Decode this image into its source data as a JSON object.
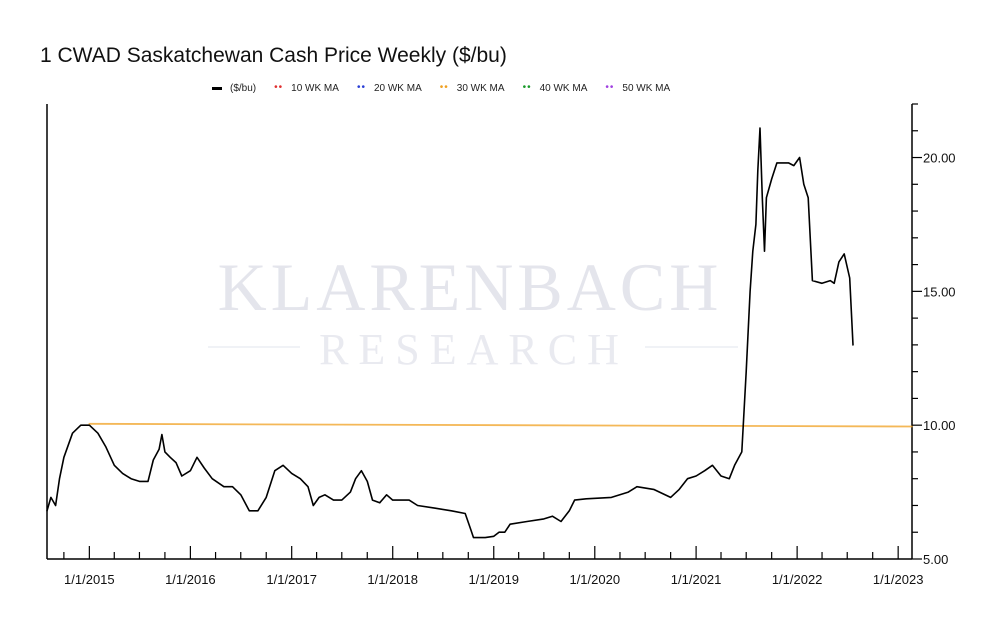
{
  "chart_data": {
    "type": "line",
    "title": "1 CWAD Saskatchewan Cash Price Weekly ($/bu)",
    "xlabel": "",
    "ylabel": "",
    "x_range": [
      "2014-08-01",
      "2023-02-20"
    ],
    "ylim": [
      5.0,
      22.0
    ],
    "y_axis_side": "right",
    "y_ticks": [
      5.0,
      10.0,
      15.0,
      20.0
    ],
    "y_tick_labels": [
      "5.00",
      "10.00",
      "15.00",
      "20.00"
    ],
    "x_ticks": [
      "2015-01-01",
      "2016-01-01",
      "2017-01-01",
      "2018-01-01",
      "2019-01-01",
      "2020-01-01",
      "2021-01-01",
      "2022-01-01",
      "2023-01-01"
    ],
    "x_tick_labels": [
      "1/1/2015",
      "1/1/2016",
      "1/1/2017",
      "1/1/2018",
      "1/1/2019",
      "1/1/2020",
      "1/1/2021",
      "1/1/2022",
      "1/1/2023"
    ],
    "grid": false,
    "legend_position": "top",
    "watermark": [
      "KLARENBACH",
      "RESEARCH"
    ],
    "legend": [
      {
        "name": "($/bu)",
        "color": "#000000",
        "style": "line"
      },
      {
        "name": "10 WK MA",
        "color": "#e03030",
        "style": "dots"
      },
      {
        "name": "20 WK MA",
        "color": "#2a3fd6",
        "style": "dots"
      },
      {
        "name": "30 WK MA",
        "color": "#f0a020",
        "style": "dots"
      },
      {
        "name": "40 WK MA",
        "color": "#1a9a2a",
        "style": "dots"
      },
      {
        "name": "50 WK MA",
        "color": "#a040e0",
        "style": "dots"
      }
    ],
    "series": [
      {
        "name": "($/bu)",
        "color": "#000000",
        "points": [
          [
            "2014-08-01",
            6.8
          ],
          [
            "2014-08-15",
            7.3
          ],
          [
            "2014-09-01",
            7.0
          ],
          [
            "2014-09-15",
            8.0
          ],
          [
            "2014-10-01",
            8.8
          ],
          [
            "2014-11-01",
            9.7
          ],
          [
            "2014-12-01",
            10.0
          ],
          [
            "2015-01-01",
            10.0
          ],
          [
            "2015-02-01",
            9.7
          ],
          [
            "2015-03-01",
            9.2
          ],
          [
            "2015-04-01",
            8.5
          ],
          [
            "2015-05-01",
            8.2
          ],
          [
            "2015-06-01",
            8.0
          ],
          [
            "2015-07-01",
            7.9
          ],
          [
            "2015-08-01",
            7.9
          ],
          [
            "2015-08-20",
            8.7
          ],
          [
            "2015-09-10",
            9.1
          ],
          [
            "2015-09-20",
            9.65
          ],
          [
            "2015-10-01",
            9.0
          ],
          [
            "2015-10-20",
            8.8
          ],
          [
            "2015-11-10",
            8.6
          ],
          [
            "2015-12-01",
            8.1
          ],
          [
            "2016-01-01",
            8.3
          ],
          [
            "2016-01-25",
            8.8
          ],
          [
            "2016-02-20",
            8.4
          ],
          [
            "2016-03-20",
            8.0
          ],
          [
            "2016-05-01",
            7.7
          ],
          [
            "2016-06-01",
            7.7
          ],
          [
            "2016-07-01",
            7.4
          ],
          [
            "2016-08-01",
            6.8
          ],
          [
            "2016-09-01",
            6.8
          ],
          [
            "2016-10-01",
            7.3
          ],
          [
            "2016-11-01",
            8.3
          ],
          [
            "2016-12-01",
            8.5
          ],
          [
            "2017-01-01",
            8.2
          ],
          [
            "2017-02-01",
            8.0
          ],
          [
            "2017-03-01",
            7.7
          ],
          [
            "2017-03-20",
            7.0
          ],
          [
            "2017-04-10",
            7.3
          ],
          [
            "2017-05-01",
            7.4
          ],
          [
            "2017-06-01",
            7.2
          ],
          [
            "2017-07-01",
            7.2
          ],
          [
            "2017-08-01",
            7.5
          ],
          [
            "2017-08-20",
            8.0
          ],
          [
            "2017-09-10",
            8.3
          ],
          [
            "2017-10-01",
            7.9
          ],
          [
            "2017-10-20",
            7.2
          ],
          [
            "2017-11-15",
            7.1
          ],
          [
            "2017-12-10",
            7.4
          ],
          [
            "2018-01-01",
            7.2
          ],
          [
            "2018-03-01",
            7.2
          ],
          [
            "2018-04-01",
            7.0
          ],
          [
            "2018-06-01",
            6.9
          ],
          [
            "2018-08-01",
            6.8
          ],
          [
            "2018-09-20",
            6.7
          ],
          [
            "2018-10-10",
            6.1
          ],
          [
            "2018-10-20",
            5.8
          ],
          [
            "2018-12-01",
            5.8
          ],
          [
            "2019-01-01",
            5.85
          ],
          [
            "2019-01-20",
            6.0
          ],
          [
            "2019-02-10",
            6.0
          ],
          [
            "2019-03-01",
            6.3
          ],
          [
            "2019-05-01",
            6.4
          ],
          [
            "2019-07-01",
            6.5
          ],
          [
            "2019-08-01",
            6.6
          ],
          [
            "2019-09-01",
            6.4
          ],
          [
            "2019-10-01",
            6.8
          ],
          [
            "2019-10-20",
            7.2
          ],
          [
            "2019-12-01",
            7.25
          ],
          [
            "2020-03-01",
            7.3
          ],
          [
            "2020-05-01",
            7.5
          ],
          [
            "2020-06-01",
            7.7
          ],
          [
            "2020-08-01",
            7.6
          ],
          [
            "2020-10-01",
            7.3
          ],
          [
            "2020-11-01",
            7.6
          ],
          [
            "2020-12-01",
            8.0
          ],
          [
            "2021-01-01",
            8.1
          ],
          [
            "2021-02-01",
            8.3
          ],
          [
            "2021-03-01",
            8.5
          ],
          [
            "2021-04-01",
            8.1
          ],
          [
            "2021-05-01",
            8.0
          ],
          [
            "2021-05-20",
            8.5
          ],
          [
            "2021-06-15",
            9.0
          ],
          [
            "2021-07-01",
            12.0
          ],
          [
            "2021-07-15",
            15.0
          ],
          [
            "2021-07-25",
            16.5
          ],
          [
            "2021-08-05",
            17.5
          ],
          [
            "2021-08-12",
            19.5
          ],
          [
            "2021-08-20",
            21.1
          ],
          [
            "2021-08-28",
            18.5
          ],
          [
            "2021-09-05",
            16.5
          ],
          [
            "2021-09-12",
            18.5
          ],
          [
            "2021-10-01",
            19.2
          ],
          [
            "2021-10-20",
            19.8
          ],
          [
            "2021-12-01",
            19.8
          ],
          [
            "2021-12-20",
            19.7
          ],
          [
            "2022-01-10",
            20.0
          ],
          [
            "2022-01-25",
            19.0
          ],
          [
            "2022-02-10",
            18.5
          ],
          [
            "2022-02-25",
            15.4
          ],
          [
            "2022-04-01",
            15.3
          ],
          [
            "2022-05-01",
            15.4
          ],
          [
            "2022-05-15",
            15.3
          ],
          [
            "2022-06-01",
            16.1
          ],
          [
            "2022-06-20",
            16.4
          ],
          [
            "2022-07-10",
            15.5
          ],
          [
            "2022-07-22",
            13.0
          ]
        ]
      },
      {
        "name": "30 WK MA",
        "color": "#f0a020",
        "points": [
          [
            "2015-01-01",
            10.05
          ],
          [
            "2023-02-20",
            9.95
          ]
        ]
      }
    ]
  }
}
